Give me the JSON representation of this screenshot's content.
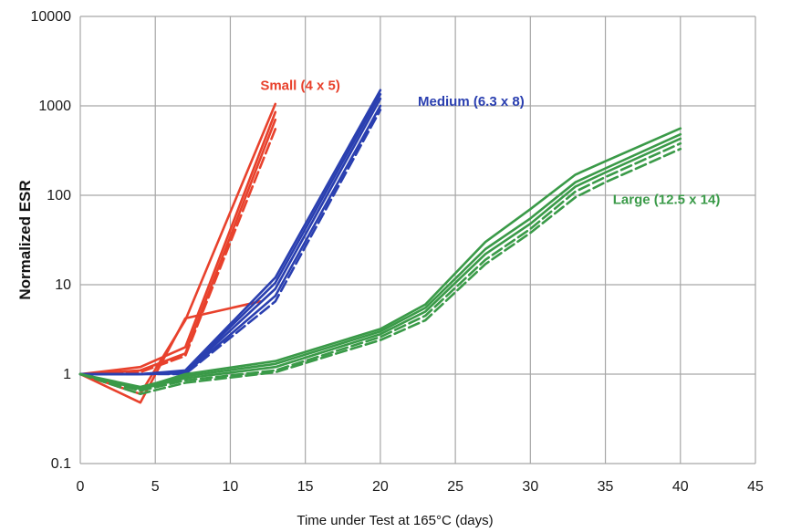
{
  "chart_data": {
    "type": "line",
    "title": "",
    "xlabel": "Time under Test at 165°C (days)",
    "ylabel": "Normalized ESR",
    "xlim": [
      0,
      45
    ],
    "ylim": [
      0.1,
      10000
    ],
    "yscale": "log",
    "grid": true,
    "x_ticks": [
      "0",
      "5",
      "10",
      "15",
      "20",
      "25",
      "30",
      "35",
      "40",
      "45"
    ],
    "y_ticks": [
      "0.1",
      "1",
      "10",
      "100",
      "1000",
      "10000"
    ],
    "annotations": [
      {
        "text": "Small (4 x 5)",
        "color": "#e8412c",
        "at": [
          12,
          1500
        ]
      },
      {
        "text": "Medium (6.3 x 8)",
        "color": "#2a3fb0",
        "at": [
          22.5,
          1000
        ]
      },
      {
        "text": "Large (12.5 x 14)",
        "color": "#3a9a48",
        "at": [
          35.5,
          80
        ]
      }
    ],
    "series": [
      {
        "group": "Small",
        "color": "#e8412c",
        "dash": "solid",
        "x": [
          0,
          4,
          7,
          13
        ],
        "y": [
          1,
          0.6,
          4,
          1050
        ]
      },
      {
        "group": "Small",
        "color": "#e8412c",
        "dash": "solid",
        "x": [
          0,
          4,
          7,
          12
        ],
        "y": [
          1,
          0.48,
          4.2,
          6.5
        ]
      },
      {
        "group": "Small",
        "color": "#e8412c",
        "dash": "solid",
        "x": [
          0,
          4,
          7,
          13
        ],
        "y": [
          1,
          1.1,
          1.7,
          700
        ]
      },
      {
        "group": "Small",
        "color": "#e8412c",
        "dash": "dashed",
        "x": [
          0,
          4,
          7,
          13
        ],
        "y": [
          1,
          1.05,
          1.6,
          550
        ]
      },
      {
        "group": "Small",
        "color": "#e8412c",
        "dash": "solid",
        "x": [
          0,
          4,
          7,
          13
        ],
        "y": [
          1,
          1.2,
          2.0,
          850
        ]
      },
      {
        "group": "Medium",
        "color": "#2a3fb0",
        "dash": "solid",
        "x": [
          0,
          4,
          7,
          13,
          20
        ],
        "y": [
          1,
          1.0,
          1.1,
          12,
          1500
        ]
      },
      {
        "group": "Medium",
        "color": "#2a3fb0",
        "dash": "solid",
        "x": [
          0,
          4,
          7,
          13,
          20
        ],
        "y": [
          1,
          1.0,
          1.05,
          9,
          1200
        ]
      },
      {
        "group": "Medium",
        "color": "#2a3fb0",
        "dash": "solid",
        "x": [
          0,
          4,
          7,
          13,
          20
        ],
        "y": [
          1,
          1.0,
          1.02,
          7.5,
          1000
        ]
      },
      {
        "group": "Medium",
        "color": "#2a3fb0",
        "dash": "dashed",
        "x": [
          0,
          4,
          7,
          13,
          20
        ],
        "y": [
          1,
          1.0,
          1.0,
          6.5,
          900
        ]
      },
      {
        "group": "Medium",
        "color": "#2a3fb0",
        "dash": "solid",
        "x": [
          0,
          4,
          7,
          13,
          20
        ],
        "y": [
          1,
          1.0,
          1.08,
          10.5,
          1350
        ]
      },
      {
        "group": "Large",
        "color": "#3a9a48",
        "dash": "solid",
        "x": [
          0,
          4,
          7,
          13,
          20,
          23,
          27,
          30,
          33,
          35,
          40
        ],
        "y": [
          1,
          0.7,
          1.0,
          1.4,
          3.2,
          6.0,
          30,
          70,
          170,
          240,
          560
        ]
      },
      {
        "group": "Large",
        "color": "#3a9a48",
        "dash": "solid",
        "x": [
          0,
          4,
          7,
          13,
          20,
          23,
          27,
          30,
          33,
          35,
          40
        ],
        "y": [
          1,
          0.72,
          0.95,
          1.3,
          3.0,
          5.5,
          25,
          55,
          140,
          200,
          480
        ]
      },
      {
        "group": "Large",
        "color": "#3a9a48",
        "dash": "solid",
        "x": [
          0,
          4,
          7,
          13,
          20,
          23,
          27,
          30,
          33,
          35,
          40
        ],
        "y": [
          1,
          0.68,
          0.9,
          1.2,
          2.8,
          5.0,
          22,
          48,
          125,
          180,
          430
        ]
      },
      {
        "group": "Large",
        "color": "#3a9a48",
        "dash": "dashed",
        "x": [
          0,
          4,
          7,
          13,
          20,
          23,
          27,
          30,
          33,
          35,
          40
        ],
        "y": [
          1,
          0.65,
          0.85,
          1.1,
          2.6,
          4.5,
          19,
          42,
          110,
          160,
          380
        ]
      },
      {
        "group": "Large",
        "color": "#3a9a48",
        "dash": "dashed",
        "x": [
          0,
          4,
          7,
          13,
          20,
          23,
          27,
          30,
          33,
          35,
          40
        ],
        "y": [
          1,
          0.6,
          0.8,
          1.05,
          2.4,
          4.0,
          17,
          38,
          95,
          140,
          330
        ]
      }
    ]
  }
}
